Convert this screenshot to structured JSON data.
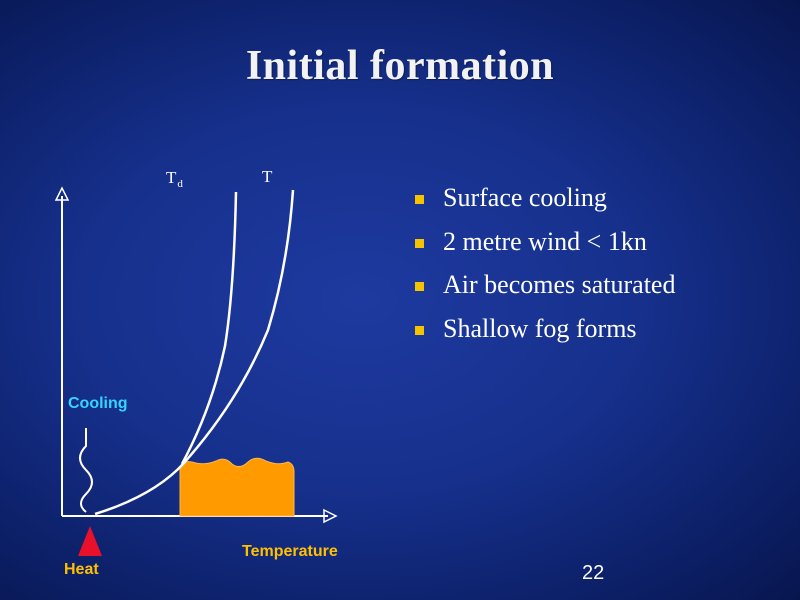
{
  "slide": {
    "title": "Initial formation",
    "page_number": "22"
  },
  "bullets": [
    {
      "text": "Surface cooling"
    },
    {
      "text": "2 metre wind < 1kn"
    },
    {
      "text": "Air becomes saturated"
    },
    {
      "text": "Shallow fog forms"
    }
  ],
  "diagram": {
    "dewpoint_label": "T",
    "dewpoint_subscript": "d",
    "temperature_curve_label": "T",
    "x_axis_label": "Temperature",
    "cooling_label": "Cooling",
    "heat_label": "Heat"
  },
  "colors": {
    "background": "#16308c",
    "title_text": "#f2f2f2",
    "bullet_marker": "#f5c400",
    "fog": "#ff9a00",
    "heat_arrow": "#e8102a",
    "cooling_label": "#35d4ff",
    "axis_label": "#ffc000",
    "curves": "#ffffff"
  }
}
